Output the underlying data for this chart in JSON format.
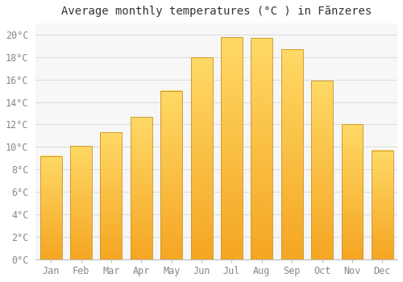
{
  "title": "Average monthly temperatures (°C ) in Fãnzeres",
  "months": [
    "Jan",
    "Feb",
    "Mar",
    "Apr",
    "May",
    "Jun",
    "Jul",
    "Aug",
    "Sep",
    "Oct",
    "Nov",
    "Dec"
  ],
  "values": [
    9.2,
    10.1,
    11.3,
    12.7,
    15.0,
    18.0,
    19.8,
    19.7,
    18.7,
    15.9,
    12.0,
    9.7
  ],
  "bar_color_bottom": "#F5A623",
  "bar_color_top": "#FFD966",
  "bar_edge_color": "#C8922A",
  "ylim": [
    0,
    21
  ],
  "ytick_step": 2,
  "background_color": "#ffffff",
  "plot_bg_color": "#f7f7f7",
  "grid_color": "#dddddd",
  "title_fontsize": 10,
  "tick_fontsize": 8.5
}
